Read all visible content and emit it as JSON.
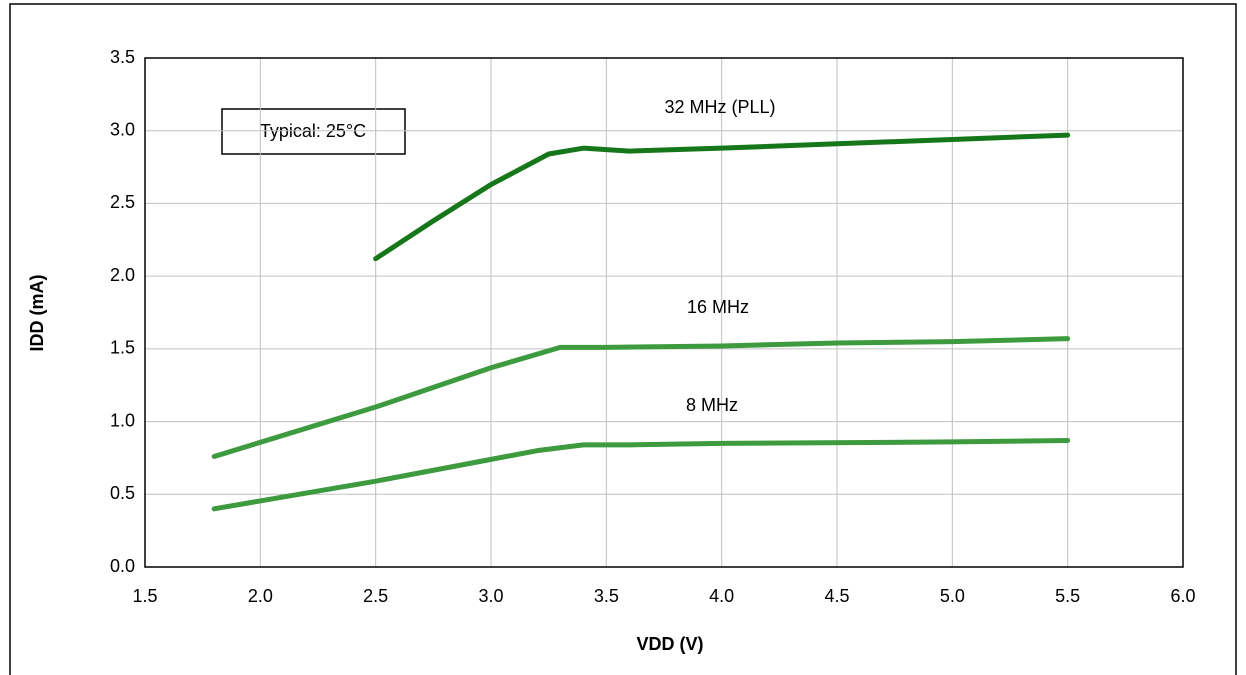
{
  "chart_data": {
    "type": "line",
    "annotation": "Typical: 25°C",
    "x_label": "VDD (V)",
    "y_label": "IDD (mA)",
    "xlim": [
      1.5,
      6.0
    ],
    "ylim": [
      0,
      3.5
    ],
    "xticks": [
      1.5,
      {
        "value": 2,
        "label": "2.0"
      },
      2.5,
      {
        "value": 3,
        "label": "3.0"
      },
      3.5,
      {
        "value": 4,
        "label": "4.0"
      },
      4.5,
      {
        "value": 5,
        "label": "5.0"
      },
      5.5,
      {
        "value": 6,
        "label": "6.0"
      }
    ],
    "yticks": [
      {
        "value": 0,
        "label": "0.0"
      },
      0.5,
      {
        "value": 1,
        "label": "1.0"
      },
      1.5,
      {
        "value": 2,
        "label": "2.0"
      },
      2.5,
      {
        "value": 3,
        "label": "3.0"
      },
      3.5
    ],
    "grid": true,
    "series": [
      {
        "name": "32 MHz (PLL)",
        "color": "#16771a",
        "x": [
          2.5,
          2.75,
          3.0,
          3.25,
          3.4,
          3.6,
          4.0,
          4.5,
          5.0,
          5.5
        ],
        "values": [
          2.12,
          2.38,
          2.63,
          2.84,
          2.88,
          2.86,
          2.88,
          2.91,
          2.94,
          2.97
        ]
      },
      {
        "name": "16 MHz",
        "color": "#3d9a3f",
        "x": [
          1.8,
          2.5,
          3.0,
          3.3,
          3.5,
          4.0,
          4.5,
          5.0,
          5.5
        ],
        "values": [
          0.76,
          1.1,
          1.37,
          1.51,
          1.51,
          1.52,
          1.54,
          1.55,
          1.57
        ]
      },
      {
        "name": "8 MHz",
        "color": "#3d9a3f",
        "x": [
          1.8,
          2.5,
          3.0,
          3.2,
          3.4,
          3.6,
          4.0,
          5.0,
          5.5
        ],
        "values": [
          0.4,
          0.59,
          0.74,
          0.8,
          0.84,
          0.84,
          0.85,
          0.86,
          0.87
        ]
      }
    ]
  }
}
